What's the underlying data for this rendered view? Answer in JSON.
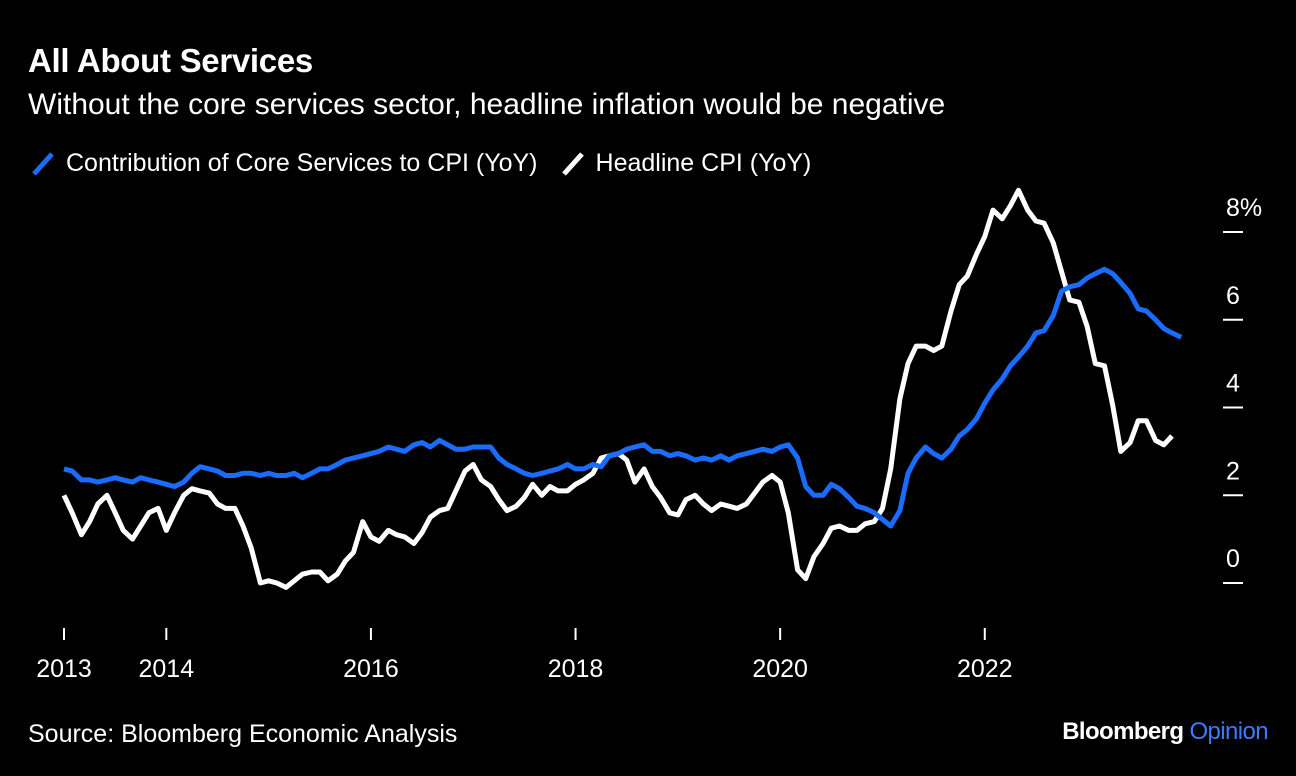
{
  "title": "All About Services",
  "subtitle": "Without the core services sector, headline inflation would be negative",
  "source": "Source: Bloomberg Economic Analysis",
  "brand": {
    "name": "Bloomberg",
    "section": "Opinion"
  },
  "colors": {
    "background": "#000000",
    "core_services": "#1a6cff",
    "headline": "#ffffff",
    "brand_accent": "#3a7bff"
  },
  "chart_data": {
    "type": "line",
    "x_ticks": [
      {
        "x": 2013.0,
        "label": "2013"
      },
      {
        "x": 2014.0,
        "label": "2014"
      },
      {
        "x": 2016.0,
        "label": "2016"
      },
      {
        "x": 2018.0,
        "label": "2018"
      },
      {
        "x": 2020.0,
        "label": "2020"
      },
      {
        "x": 2022.0,
        "label": "2022"
      }
    ],
    "y_ticks": [
      {
        "value": 0,
        "label": "0"
      },
      {
        "value": 2,
        "label": "2"
      },
      {
        "value": 4,
        "label": "4"
      },
      {
        "value": 6,
        "label": "6"
      },
      {
        "value": 8,
        "label": "8%"
      }
    ],
    "xlim": [
      2013.0,
      2023.83
    ],
    "ylim": [
      0,
      8
    ],
    "series": [
      {
        "name": "Contribution of Core Services to CPI (YoY)",
        "color": "#1a6cff",
        "points": [
          [
            2013.0,
            2.6
          ],
          [
            2013.08,
            2.55
          ],
          [
            2013.17,
            2.35
          ],
          [
            2013.25,
            2.35
          ],
          [
            2013.33,
            2.3
          ],
          [
            2013.42,
            2.35
          ],
          [
            2013.5,
            2.4
          ],
          [
            2013.58,
            2.35
          ],
          [
            2013.67,
            2.3
          ],
          [
            2013.75,
            2.4
          ],
          [
            2013.83,
            2.35
          ],
          [
            2013.92,
            2.3
          ],
          [
            2014.0,
            2.25
          ],
          [
            2014.08,
            2.2
          ],
          [
            2014.17,
            2.3
          ],
          [
            2014.25,
            2.5
          ],
          [
            2014.33,
            2.65
          ],
          [
            2014.42,
            2.6
          ],
          [
            2014.5,
            2.55
          ],
          [
            2014.58,
            2.45
          ],
          [
            2014.67,
            2.45
          ],
          [
            2014.75,
            2.5
          ],
          [
            2014.83,
            2.5
          ],
          [
            2014.92,
            2.45
          ],
          [
            2015.0,
            2.5
          ],
          [
            2015.08,
            2.45
          ],
          [
            2015.17,
            2.45
          ],
          [
            2015.25,
            2.5
          ],
          [
            2015.33,
            2.4
          ],
          [
            2015.42,
            2.5
          ],
          [
            2015.5,
            2.6
          ],
          [
            2015.58,
            2.6
          ],
          [
            2015.67,
            2.7
          ],
          [
            2015.75,
            2.8
          ],
          [
            2015.83,
            2.85
          ],
          [
            2015.92,
            2.9
          ],
          [
            2016.0,
            2.95
          ],
          [
            2016.08,
            3.0
          ],
          [
            2016.17,
            3.1
          ],
          [
            2016.25,
            3.05
          ],
          [
            2016.33,
            3.0
          ],
          [
            2016.42,
            3.15
          ],
          [
            2016.5,
            3.2
          ],
          [
            2016.58,
            3.1
          ],
          [
            2016.67,
            3.25
          ],
          [
            2016.75,
            3.15
          ],
          [
            2016.83,
            3.05
          ],
          [
            2016.92,
            3.05
          ],
          [
            2017.0,
            3.1
          ],
          [
            2017.08,
            3.1
          ],
          [
            2017.17,
            3.1
          ],
          [
            2017.25,
            2.85
          ],
          [
            2017.33,
            2.7
          ],
          [
            2017.42,
            2.6
          ],
          [
            2017.5,
            2.5
          ],
          [
            2017.58,
            2.45
          ],
          [
            2017.67,
            2.5
          ],
          [
            2017.75,
            2.55
          ],
          [
            2017.83,
            2.6
          ],
          [
            2017.92,
            2.7
          ],
          [
            2018.0,
            2.6
          ],
          [
            2018.08,
            2.6
          ],
          [
            2018.17,
            2.7
          ],
          [
            2018.25,
            2.65
          ],
          [
            2018.33,
            2.9
          ],
          [
            2018.42,
            2.95
          ],
          [
            2018.5,
            3.05
          ],
          [
            2018.58,
            3.1
          ],
          [
            2018.67,
            3.15
          ],
          [
            2018.75,
            3.0
          ],
          [
            2018.83,
            3.0
          ],
          [
            2018.92,
            2.9
          ],
          [
            2019.0,
            2.95
          ],
          [
            2019.08,
            2.9
          ],
          [
            2019.17,
            2.8
          ],
          [
            2019.25,
            2.85
          ],
          [
            2019.33,
            2.8
          ],
          [
            2019.42,
            2.9
          ],
          [
            2019.5,
            2.8
          ],
          [
            2019.58,
            2.9
          ],
          [
            2019.67,
            2.95
          ],
          [
            2019.75,
            3.0
          ],
          [
            2019.83,
            3.05
          ],
          [
            2019.92,
            3.0
          ],
          [
            2020.0,
            3.1
          ],
          [
            2020.08,
            3.15
          ],
          [
            2020.17,
            2.85
          ],
          [
            2020.25,
            2.2
          ],
          [
            2020.33,
            2.0
          ],
          [
            2020.42,
            2.0
          ],
          [
            2020.5,
            2.25
          ],
          [
            2020.58,
            2.15
          ],
          [
            2020.67,
            1.95
          ],
          [
            2020.75,
            1.75
          ],
          [
            2020.83,
            1.7
          ],
          [
            2020.92,
            1.6
          ],
          [
            2021.0,
            1.45
          ],
          [
            2021.08,
            1.3
          ],
          [
            2021.17,
            1.65
          ],
          [
            2021.25,
            2.5
          ],
          [
            2021.33,
            2.85
          ],
          [
            2021.42,
            3.1
          ],
          [
            2021.5,
            2.95
          ],
          [
            2021.58,
            2.85
          ],
          [
            2021.67,
            3.05
          ],
          [
            2021.75,
            3.35
          ],
          [
            2021.83,
            3.5
          ],
          [
            2021.92,
            3.75
          ],
          [
            2022.0,
            4.1
          ],
          [
            2022.08,
            4.4
          ],
          [
            2022.17,
            4.65
          ],
          [
            2022.25,
            4.95
          ],
          [
            2022.33,
            5.15
          ],
          [
            2022.42,
            5.4
          ],
          [
            2022.5,
            5.7
          ],
          [
            2022.58,
            5.75
          ],
          [
            2022.67,
            6.1
          ],
          [
            2022.75,
            6.65
          ],
          [
            2022.83,
            6.75
          ],
          [
            2022.92,
            6.8
          ],
          [
            2023.0,
            6.95
          ],
          [
            2023.08,
            7.05
          ],
          [
            2023.17,
            7.15
          ],
          [
            2023.25,
            7.05
          ],
          [
            2023.33,
            6.85
          ],
          [
            2023.42,
            6.6
          ],
          [
            2023.5,
            6.25
          ],
          [
            2023.58,
            6.2
          ],
          [
            2023.67,
            6.0
          ],
          [
            2023.75,
            5.8
          ],
          [
            2023.83,
            5.7
          ],
          [
            2023.92,
            5.6
          ]
        ]
      },
      {
        "name": "Headline CPI (YoY)",
        "color": "#ffffff",
        "points": [
          [
            2013.0,
            2.0
          ],
          [
            2013.08,
            1.6
          ],
          [
            2013.17,
            1.1
          ],
          [
            2013.25,
            1.4
          ],
          [
            2013.33,
            1.8
          ],
          [
            2013.42,
            2.0
          ],
          [
            2013.5,
            1.6
          ],
          [
            2013.58,
            1.2
          ],
          [
            2013.67,
            1.0
          ],
          [
            2013.75,
            1.3
          ],
          [
            2013.83,
            1.6
          ],
          [
            2013.92,
            1.7
          ],
          [
            2014.0,
            1.2
          ],
          [
            2014.08,
            1.6
          ],
          [
            2014.17,
            2.0
          ],
          [
            2014.25,
            2.15
          ],
          [
            2014.33,
            2.1
          ],
          [
            2014.42,
            2.05
          ],
          [
            2014.5,
            1.8
          ],
          [
            2014.58,
            1.7
          ],
          [
            2014.67,
            1.7
          ],
          [
            2014.75,
            1.3
          ],
          [
            2014.83,
            0.8
          ],
          [
            2014.92,
            0.0
          ],
          [
            2015.0,
            0.05
          ],
          [
            2015.08,
            0.0
          ],
          [
            2015.17,
            -0.1
          ],
          [
            2015.25,
            0.05
          ],
          [
            2015.33,
            0.2
          ],
          [
            2015.42,
            0.25
          ],
          [
            2015.5,
            0.25
          ],
          [
            2015.58,
            0.05
          ],
          [
            2015.67,
            0.2
          ],
          [
            2015.75,
            0.5
          ],
          [
            2015.83,
            0.7
          ],
          [
            2015.92,
            1.4
          ],
          [
            2016.0,
            1.05
          ],
          [
            2016.08,
            0.95
          ],
          [
            2016.17,
            1.2
          ],
          [
            2016.25,
            1.1
          ],
          [
            2016.33,
            1.05
          ],
          [
            2016.42,
            0.9
          ],
          [
            2016.5,
            1.15
          ],
          [
            2016.58,
            1.5
          ],
          [
            2016.67,
            1.65
          ],
          [
            2016.75,
            1.7
          ],
          [
            2016.83,
            2.1
          ],
          [
            2016.92,
            2.55
          ],
          [
            2017.0,
            2.7
          ],
          [
            2017.08,
            2.35
          ],
          [
            2017.17,
            2.2
          ],
          [
            2017.25,
            1.9
          ],
          [
            2017.33,
            1.65
          ],
          [
            2017.42,
            1.75
          ],
          [
            2017.5,
            1.95
          ],
          [
            2017.58,
            2.25
          ],
          [
            2017.67,
            2.0
          ],
          [
            2017.75,
            2.2
          ],
          [
            2017.83,
            2.1
          ],
          [
            2017.92,
            2.1
          ],
          [
            2018.0,
            2.25
          ],
          [
            2018.08,
            2.35
          ],
          [
            2018.17,
            2.5
          ],
          [
            2018.25,
            2.85
          ],
          [
            2018.33,
            2.9
          ],
          [
            2018.42,
            2.95
          ],
          [
            2018.5,
            2.8
          ],
          [
            2018.58,
            2.3
          ],
          [
            2018.67,
            2.6
          ],
          [
            2018.75,
            2.2
          ],
          [
            2018.83,
            1.95
          ],
          [
            2018.92,
            1.6
          ],
          [
            2019.0,
            1.55
          ],
          [
            2019.08,
            1.9
          ],
          [
            2019.17,
            2.0
          ],
          [
            2019.25,
            1.8
          ],
          [
            2019.33,
            1.65
          ],
          [
            2019.42,
            1.8
          ],
          [
            2019.5,
            1.75
          ],
          [
            2019.58,
            1.7
          ],
          [
            2019.67,
            1.8
          ],
          [
            2019.75,
            2.05
          ],
          [
            2019.83,
            2.3
          ],
          [
            2019.92,
            2.45
          ],
          [
            2020.0,
            2.3
          ],
          [
            2020.08,
            1.6
          ],
          [
            2020.17,
            0.3
          ],
          [
            2020.25,
            0.1
          ],
          [
            2020.33,
            0.6
          ],
          [
            2020.42,
            0.9
          ],
          [
            2020.5,
            1.25
          ],
          [
            2020.58,
            1.3
          ],
          [
            2020.67,
            1.2
          ],
          [
            2020.75,
            1.2
          ],
          [
            2020.83,
            1.35
          ],
          [
            2020.92,
            1.4
          ],
          [
            2021.0,
            1.7
          ],
          [
            2021.08,
            2.6
          ],
          [
            2021.17,
            4.2
          ],
          [
            2021.25,
            5.0
          ],
          [
            2021.33,
            5.4
          ],
          [
            2021.42,
            5.4
          ],
          [
            2021.5,
            5.3
          ],
          [
            2021.58,
            5.4
          ],
          [
            2021.67,
            6.2
          ],
          [
            2021.75,
            6.8
          ],
          [
            2021.83,
            7.0
          ],
          [
            2021.92,
            7.5
          ],
          [
            2022.0,
            7.9
          ],
          [
            2022.08,
            8.5
          ],
          [
            2022.17,
            8.3
          ],
          [
            2022.25,
            8.6
          ],
          [
            2022.33,
            8.95
          ],
          [
            2022.42,
            8.5
          ],
          [
            2022.5,
            8.25
          ],
          [
            2022.58,
            8.2
          ],
          [
            2022.67,
            7.75
          ],
          [
            2022.75,
            7.1
          ],
          [
            2022.83,
            6.45
          ],
          [
            2022.92,
            6.4
          ],
          [
            2023.0,
            5.85
          ],
          [
            2023.08,
            5.0
          ],
          [
            2023.17,
            4.95
          ],
          [
            2023.25,
            4.05
          ],
          [
            2023.33,
            3.0
          ],
          [
            2023.42,
            3.2
          ],
          [
            2023.5,
            3.7
          ],
          [
            2023.58,
            3.7
          ],
          [
            2023.67,
            3.25
          ],
          [
            2023.75,
            3.15
          ],
          [
            2023.83,
            3.35
          ]
        ]
      }
    ],
    "legend": "top-left",
    "grid": false
  }
}
